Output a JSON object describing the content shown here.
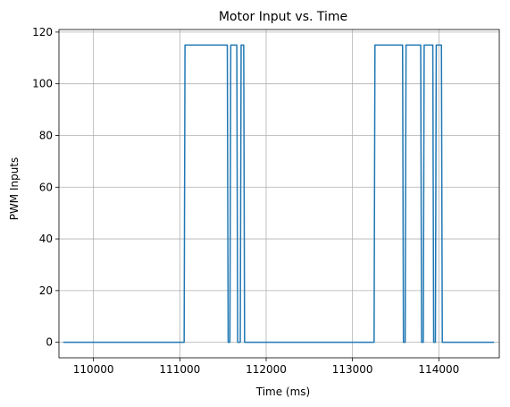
{
  "chart_data": {
    "type": "line",
    "title": "Motor Input vs. Time",
    "xlabel": "Time (ms)",
    "ylabel": "PWM Inputs",
    "xlim": [
      109600,
      114700
    ],
    "ylim": [
      -6,
      121
    ],
    "x_ticks": [
      110000,
      111000,
      112000,
      113000,
      114000
    ],
    "y_ticks": [
      0,
      20,
      40,
      60,
      80,
      100,
      120
    ],
    "grid": true,
    "series": [
      {
        "color": "#1f77b4",
        "x": [
          109650,
          111050,
          111060,
          111550,
          111560,
          111580,
          111590,
          111660,
          111670,
          111700,
          111710,
          111740,
          111750,
          113250,
          113260,
          113580,
          113590,
          113610,
          113620,
          113790,
          113800,
          113820,
          113830,
          113930,
          113940,
          113960,
          113970,
          114030,
          114040,
          114640
        ],
        "y": [
          0,
          0,
          115,
          115,
          0,
          0,
          115,
          115,
          0,
          0,
          115,
          115,
          0,
          0,
          115,
          115,
          0,
          0,
          115,
          115,
          0,
          0,
          115,
          115,
          0,
          0,
          115,
          115,
          0,
          0
        ]
      }
    ]
  }
}
